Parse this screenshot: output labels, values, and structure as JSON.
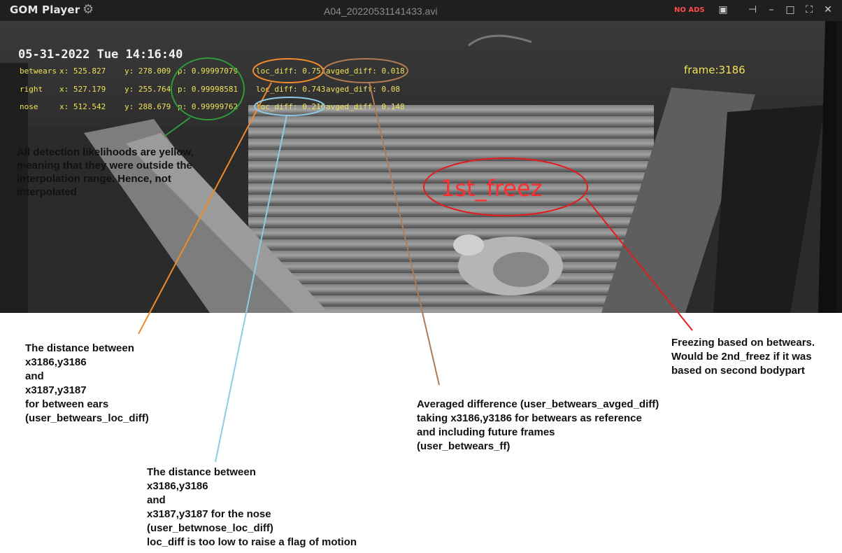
{
  "app": {
    "name": "GOM Player",
    "file_title": "A04_20220531141433.avi",
    "no_ads": "NO ADS"
  },
  "window_buttons": {
    "subtitle_icon": "subtitles-icon",
    "pin_icon": "pin-icon",
    "minimize_icon": "minimize-icon",
    "maximize_icon": "maximize-icon",
    "fullscreen_icon": "fullscreen-icon",
    "close_icon": "close-icon"
  },
  "osd": {
    "timestamp": "05-31-2022  Tue  14:16:40",
    "frame": "frame:3186",
    "rows": [
      {
        "label": "betwears",
        "x": "x: 525.827",
        "y": "y: 278.009",
        "p": "p: 0.99997079",
        "loc_diff": "loc_diff: 0.752",
        "avged_diff": "avged_diff: 0.018"
      },
      {
        "label": "right",
        "x": "x: 527.179",
        "y": "y: 255.764",
        "p": "p: 0.99998581",
        "loc_diff": "loc_diff: 0.743",
        "avged_diff": "avged_diff: 0.08"
      },
      {
        "label": "nose",
        "x": "x: 512.542",
        "y": "y: 288.679",
        "p": "p: 0.99999762",
        "loc_diff": "loc_diff: 0.216",
        "avged_diff": "avged_diff: 0.148"
      }
    ],
    "freeze_label": "1st_freez"
  },
  "annotations": {
    "yellow_note": "All detection likelihoods are yellow, meaning that they were outside the interpolation range. Hence, not interpolated",
    "betwears_loc_diff": "The distance between\nx3186,y3186\nand\nx3187,y3187\nfor between ears\n(user_betwears_loc_diff)",
    "nose_loc_diff": "The distance between\nx3186,y3186\nand\nx3187,y3187 for the nose\n(user_betwnose_loc_diff)\nloc_diff is too low to raise a flag of motion",
    "avged_diff": "Averaged difference (user_betwears_avged_diff)\ntaking x3186,y3186 for betwears as reference\nand including future frames\n(user_betwears_ff)",
    "freezing": "Freezing based on betwears.\nWould be 2nd_freez if it was\nbased on second bodypart"
  },
  "colors": {
    "green": "#2f9a3a",
    "orange": "#f08a2a",
    "light_blue": "#8fcbe6",
    "brown": "#b07a55",
    "red": "#e31b1b",
    "osd_yellow": "#f0e25a"
  }
}
